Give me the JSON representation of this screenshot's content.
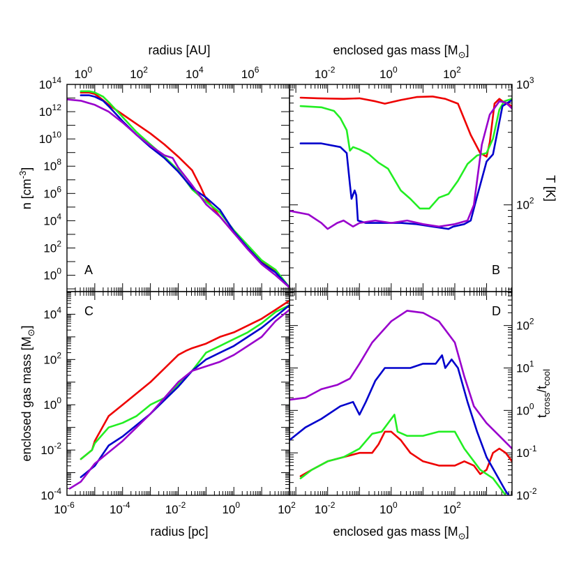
{
  "colors": {
    "red": "#ee0000",
    "green": "#22ee22",
    "blue": "#0000cc",
    "purple": "#9900cc"
  },
  "axes": {
    "radius_pc": {
      "label": "radius [pc]",
      "range": [
        -6,
        2
      ],
      "ticks": [
        "-6",
        "-4",
        "-2",
        "0",
        "2"
      ]
    },
    "radius_au": {
      "label": "radius [AU]",
      "ticks": [
        "0",
        "2",
        "4",
        "6"
      ]
    },
    "mass_top": {
      "label_main": "enclosed gas mass [M",
      "label_sub": "⊙",
      "label_end": "]",
      "range": [
        -3.2,
        3.8
      ],
      "ticks": [
        "-2",
        "0",
        "2"
      ]
    },
    "mass_bottom": {
      "label_main": "enclosed gas mass [M",
      "label_sub": "⊙",
      "label_end": "]",
      "range": [
        -3.2,
        3.8
      ],
      "ticks": [
        "-2",
        "0",
        "2"
      ]
    },
    "density": {
      "label_main": "n [cm",
      "label_sup": "-3",
      "label_end": "]",
      "range": [
        -1.2,
        14
      ],
      "ticks": [
        "0",
        "2",
        "4",
        "6",
        "8",
        "10",
        "12",
        "14"
      ]
    },
    "temperature": {
      "label": "T [K]",
      "range": [
        1.28,
        3
      ],
      "ticks": [
        "2",
        "3"
      ]
    },
    "enclosed_mass": {
      "label_main": "enclosed gas mass [M",
      "label_sub": "⊙",
      "label_end": "]",
      "range": [
        -4,
        5
      ],
      "ticks": [
        "-4",
        "-2",
        "0",
        "2",
        "4"
      ]
    },
    "time_ratio": {
      "label_t1": "t",
      "label_s1": "cross",
      "label_slash": "/t",
      "label_s2": "cool",
      "range": [
        -2,
        2.8
      ],
      "ticks": [
        "-2",
        "-1",
        "0",
        "1",
        "2"
      ]
    }
  },
  "panels": {
    "A": "A",
    "B": "B",
    "C": "C",
    "D": "D"
  },
  "chart_data": [
    {
      "type": "line",
      "panel": "A",
      "xlabel": "radius [pc]",
      "ylabel": "n [cm-3]",
      "log_axes": true,
      "series": [
        {
          "name": "red",
          "x": [
            -5.5,
            -5.2,
            -5.0,
            -4.8,
            -4.5,
            -4.0,
            -3.5,
            -3.0,
            -2.5,
            -2.0,
            -1.5,
            -1.2,
            -1.0,
            -0.5,
            0.0,
            0.5,
            1.0,
            1.5,
            2.0
          ],
          "y": [
            13.4,
            13.4,
            13.3,
            13.0,
            12.5,
            11.8,
            11.1,
            10.4,
            9.6,
            8.7,
            7.7,
            6.5,
            5.6,
            4.3,
            3.1,
            2.0,
            1.0,
            0.3,
            -0.9
          ]
        },
        {
          "name": "green",
          "x": [
            -5.5,
            -5.2,
            -5.0,
            -4.7,
            -4.5,
            -4.0,
            -3.5,
            -3.0,
            -2.5,
            -2.0,
            -1.5,
            -1.0,
            -0.5,
            0.0,
            0.5,
            1.0,
            1.5,
            2.0
          ],
          "y": [
            13.5,
            13.5,
            13.4,
            13.1,
            12.7,
            11.6,
            10.5,
            9.6,
            8.7,
            7.7,
            6.3,
            5.4,
            4.6,
            3.3,
            2.2,
            1.1,
            0.4,
            -0.9
          ]
        },
        {
          "name": "blue",
          "x": [
            -5.5,
            -5.2,
            -5.0,
            -4.7,
            -4.5,
            -4.0,
            -3.5,
            -3.0,
            -2.5,
            -2.0,
            -1.5,
            -1.0,
            -0.5,
            0.0,
            0.5,
            1.0,
            1.5,
            2.0
          ],
          "y": [
            13.2,
            13.2,
            13.1,
            12.8,
            12.4,
            11.3,
            10.3,
            9.4,
            8.6,
            7.6,
            6.4,
            5.7,
            4.8,
            3.2,
            2.0,
            0.9,
            0.2,
            -0.9
          ]
        },
        {
          "name": "purple",
          "x": [
            -6.0,
            -5.5,
            -5.0,
            -4.5,
            -4.0,
            -3.5,
            -3.0,
            -2.5,
            -2.2,
            -2.0,
            -1.5,
            -1.0,
            -0.5,
            0.0,
            0.5,
            1.0,
            1.5,
            2.0
          ],
          "y": [
            12.9,
            12.8,
            12.5,
            12.0,
            11.2,
            10.3,
            9.5,
            8.8,
            8.6,
            7.9,
            6.6,
            5.2,
            4.3,
            3.1,
            1.9,
            0.8,
            0.0,
            -0.9
          ]
        }
      ]
    },
    {
      "type": "line",
      "panel": "B",
      "xlabel": "enclosed gas mass [Msun]",
      "ylabel": "T [K]",
      "log_axes": true,
      "series": [
        {
          "name": "red",
          "x": [
            -2.85,
            -2.3,
            -1.5,
            -1.0,
            -0.5,
            -0.2,
            0.3,
            0.8,
            1.3,
            1.7,
            2.1,
            2.5,
            2.8,
            3.0,
            3.1,
            3.25,
            3.4,
            3.55,
            3.8
          ],
          "y": [
            2.89,
            2.885,
            2.88,
            2.885,
            2.86,
            2.84,
            2.87,
            2.895,
            2.9,
            2.88,
            2.84,
            2.58,
            2.43,
            2.4,
            2.52,
            2.84,
            2.88,
            2.85,
            2.82
          ]
        },
        {
          "name": "green",
          "x": [
            -2.85,
            -2.2,
            -1.8,
            -1.6,
            -1.4,
            -1.3,
            -1.2,
            -1.0,
            -0.7,
            -0.4,
            -0.1,
            0.3,
            0.6,
            0.9,
            1.2,
            1.5,
            1.8,
            2.1,
            2.4,
            2.7,
            3.0,
            3.2,
            3.4,
            3.55,
            3.8
          ],
          "y": [
            2.82,
            2.81,
            2.78,
            2.72,
            2.62,
            2.45,
            2.48,
            2.46,
            2.42,
            2.35,
            2.3,
            2.12,
            2.05,
            1.97,
            1.97,
            2.06,
            2.09,
            2.2,
            2.34,
            2.41,
            2.43,
            2.55,
            2.79,
            2.86,
            2.88
          ]
        },
        {
          "name": "blue",
          "x": [
            -2.85,
            -2.2,
            -1.6,
            -1.4,
            -1.3,
            -1.25,
            -1.15,
            -1.1,
            -1.05,
            -0.8,
            -0.3,
            0.3,
            0.8,
            1.3,
            1.8,
            1.95,
            2.3,
            2.5,
            2.7,
            3.0,
            3.2,
            3.5,
            3.8
          ],
          "y": [
            2.51,
            2.51,
            2.48,
            2.43,
            2.17,
            2.05,
            2.12,
            2.08,
            1.87,
            1.85,
            1.85,
            1.85,
            1.84,
            1.82,
            1.8,
            1.82,
            1.84,
            1.87,
            2.07,
            2.36,
            2.42,
            2.82,
            2.87
          ]
        },
        {
          "name": "purple",
          "x": [
            -3.2,
            -2.6,
            -2.2,
            -2.0,
            -1.7,
            -1.5,
            -1.2,
            -1.0,
            -0.5,
            0.0,
            0.5,
            1.0,
            1.5,
            2.0,
            2.4,
            2.6,
            2.85,
            3.1,
            3.4,
            3.6,
            3.8
          ],
          "y": [
            1.95,
            1.92,
            1.85,
            1.8,
            1.85,
            1.87,
            1.82,
            1.85,
            1.87,
            1.85,
            1.87,
            1.84,
            1.82,
            1.84,
            1.87,
            2.0,
            2.5,
            2.75,
            2.86,
            2.85,
            2.8
          ]
        }
      ]
    },
    {
      "type": "line",
      "panel": "C",
      "xlabel": "radius [pc]",
      "ylabel": "enclosed gas mass [Msun]",
      "log_axes": true,
      "series": [
        {
          "name": "red",
          "x": [
            -5.5,
            -5.1,
            -5.0,
            -4.5,
            -4.0,
            -3.5,
            -3.0,
            -2.5,
            -2.0,
            -1.7,
            -1.5,
            -1.0,
            -0.5,
            0.0,
            0.5,
            1.0,
            1.5,
            2.0
          ],
          "y": [
            -2.4,
            -2.0,
            -1.6,
            -0.5,
            0.0,
            0.5,
            1.0,
            1.6,
            2.2,
            2.4,
            2.5,
            2.7,
            3.0,
            3.2,
            3.5,
            3.8,
            4.2,
            4.6
          ]
        },
        {
          "name": "green",
          "x": [
            -5.5,
            -5.1,
            -5.0,
            -4.5,
            -4.0,
            -3.5,
            -3.0,
            -2.5,
            -2.0,
            -1.5,
            -1.0,
            -0.5,
            0.0,
            0.5,
            1.0,
            1.5,
            2.0
          ],
          "y": [
            -2.4,
            -2.0,
            -1.7,
            -1.0,
            -0.8,
            -0.5,
            0.0,
            0.3,
            0.9,
            1.5,
            2.3,
            2.6,
            2.9,
            3.2,
            3.6,
            4.1,
            4.4
          ]
        },
        {
          "name": "blue",
          "x": [
            -5.5,
            -5.0,
            -4.5,
            -4.0,
            -3.5,
            -3.0,
            -2.5,
            -2.0,
            -1.5,
            -1.0,
            -0.5,
            0.0,
            0.5,
            1.0,
            1.5,
            2.0
          ],
          "y": [
            -3.2,
            -2.7,
            -1.8,
            -1.4,
            -0.9,
            -0.4,
            0.2,
            0.8,
            1.5,
            2.0,
            2.3,
            2.6,
            3.0,
            3.4,
            3.9,
            4.4
          ]
        },
        {
          "name": "purple",
          "x": [
            -5.9,
            -5.5,
            -5.0,
            -4.5,
            -4.0,
            -3.5,
            -3.0,
            -2.5,
            -2.0,
            -1.5,
            -1.0,
            -0.5,
            0.0,
            0.5,
            1.0,
            1.5,
            2.0
          ],
          "y": [
            -3.7,
            -3.4,
            -2.6,
            -2.1,
            -1.6,
            -1.0,
            -0.4,
            0.3,
            1.0,
            1.5,
            1.7,
            1.9,
            2.2,
            2.6,
            3.0,
            3.7,
            4.2
          ]
        }
      ]
    },
    {
      "type": "line",
      "panel": "D",
      "xlabel": "enclosed gas mass [Msun]",
      "ylabel": "tcross/tcool",
      "log_axes": true,
      "series": [
        {
          "name": "red",
          "x": [
            -2.85,
            -2.5,
            -2.0,
            -1.5,
            -1.0,
            -0.6,
            -0.4,
            -0.2,
            0.0,
            0.3,
            0.6,
            1.0,
            1.5,
            2.0,
            2.3,
            2.6,
            2.8,
            3.0,
            3.1,
            3.2,
            3.4,
            3.6,
            3.8
          ],
          "y": [
            -1.55,
            -1.4,
            -1.2,
            -1.1,
            -1.0,
            -1.0,
            -0.8,
            -0.5,
            -0.5,
            -0.7,
            -1.0,
            -1.2,
            -1.3,
            -1.3,
            -1.2,
            -1.3,
            -1.5,
            -1.4,
            -1.2,
            -1.0,
            -0.9,
            -1.0,
            -1.2
          ]
        },
        {
          "name": "green",
          "x": [
            -2.85,
            -2.5,
            -2.0,
            -1.5,
            -1.0,
            -0.6,
            -0.3,
            0.1,
            0.2,
            0.5,
            1.0,
            1.5,
            2.0,
            2.3,
            2.6,
            2.8,
            3.0,
            3.2,
            3.4,
            3.6,
            3.8
          ],
          "y": [
            -1.6,
            -1.4,
            -1.2,
            -1.1,
            -0.9,
            -0.55,
            -0.5,
            -0.1,
            -0.5,
            -0.6,
            -0.6,
            -0.5,
            -0.5,
            -0.9,
            -1.2,
            -1.4,
            -1.5,
            -1.6,
            -1.8,
            -2.0,
            -2.2
          ]
        },
        {
          "name": "blue",
          "x": [
            -3.2,
            -2.7,
            -2.2,
            -1.6,
            -1.2,
            -1.0,
            -0.8,
            -0.5,
            -0.2,
            0.2,
            0.6,
            1.0,
            1.4,
            1.6,
            1.7,
            1.9,
            2.1,
            2.4,
            2.7,
            3.0,
            3.3,
            3.6,
            3.8
          ],
          "y": [
            -0.7,
            -0.4,
            -0.2,
            0.1,
            0.2,
            -0.1,
            0.2,
            0.7,
            1.0,
            1.0,
            1.0,
            1.1,
            1.1,
            1.3,
            1.0,
            1.2,
            1.0,
            0.2,
            -0.5,
            -1.1,
            -1.5,
            -1.9,
            -2.1
          ]
        },
        {
          "name": "purple",
          "x": [
            -3.2,
            -2.7,
            -2.2,
            -1.7,
            -1.3,
            -1.0,
            -0.6,
            0.0,
            0.5,
            1.0,
            1.5,
            2.0,
            2.3,
            2.6,
            3.0,
            3.4,
            3.8
          ],
          "y": [
            0.25,
            0.3,
            0.5,
            0.6,
            0.75,
            1.1,
            1.6,
            2.1,
            2.35,
            2.3,
            2.1,
            1.6,
            0.8,
            0.1,
            -0.3,
            -0.6,
            -0.9
          ]
        }
      ]
    }
  ]
}
